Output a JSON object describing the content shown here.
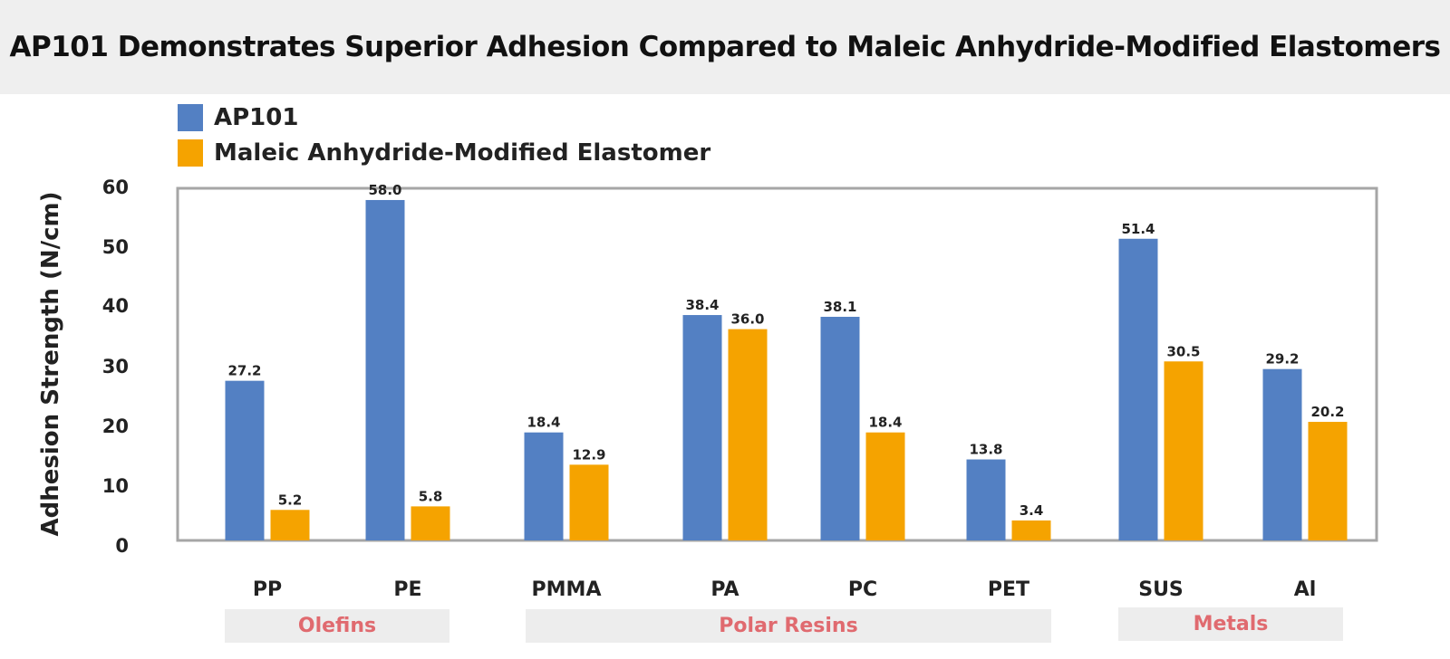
{
  "title": "AP101 Demonstrates Superior Adhesion Compared to Maleic Anhydride-Modified Elastomers",
  "legend": [
    {
      "name": "AP101",
      "color": "#5380c3"
    },
    {
      "name": "Maleic Anhydride-Modified Elastomer",
      "color": "#f5a300"
    }
  ],
  "chart_data": {
    "type": "bar",
    "title": "AP101 Demonstrates Superior Adhesion Compared to Maleic Anhydride-Modified Elastomers",
    "xlabel": "",
    "ylabel": "Adhesion Strength (N/cm)",
    "ylim": [
      0,
      60
    ],
    "yticks": [
      0,
      10,
      20,
      30,
      40,
      50,
      60
    ],
    "grid": false,
    "legend_position": "top-left",
    "categories": [
      "PP",
      "PE",
      "PMMA",
      "PA",
      "PC",
      "PET",
      "SUS",
      "Al"
    ],
    "series": [
      {
        "name": "AP101",
        "color": "#5380c3",
        "values": [
          27.2,
          58.0,
          18.4,
          38.4,
          38.1,
          13.8,
          51.4,
          29.2
        ],
        "labels": [
          "27.2",
          "58.0",
          "18.4",
          "38.4",
          "38.1",
          "13.8",
          "51.4",
          "29.2"
        ]
      },
      {
        "name": "Maleic Anhydride-Modified Elastomer",
        "color": "#f5a300",
        "values": [
          5.2,
          5.8,
          12.9,
          36.0,
          18.4,
          3.4,
          30.5,
          20.2
        ],
        "labels": [
          "5.2",
          "5.8",
          "12.9",
          "36.0",
          "18.4",
          "3.4",
          "30.5",
          "20.2"
        ]
      }
    ],
    "groups": [
      {
        "label": "Olefins",
        "categories": [
          "PP",
          "PE"
        ]
      },
      {
        "label": "Polar Resins",
        "categories": [
          "PMMA",
          "PA",
          "PC",
          "PET"
        ]
      },
      {
        "label": "Metals",
        "categories": [
          "SUS",
          "Al"
        ]
      }
    ]
  }
}
